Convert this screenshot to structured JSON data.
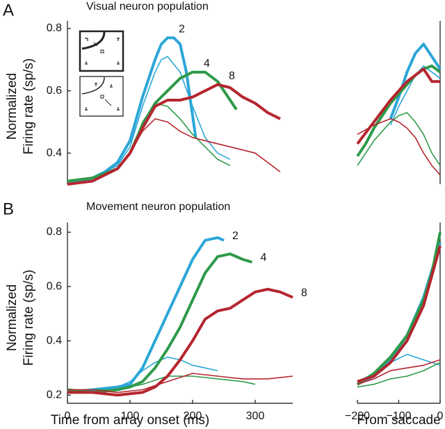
{
  "chart_data": [
    {
      "type": "line",
      "panel": "A",
      "title": "Visual neuron population",
      "ylabel": [
        "Normalized",
        "Firing rate (sp/s)"
      ],
      "xlim": [
        0,
        360
      ],
      "ylim": [
        0.3,
        0.8
      ],
      "yticks": [
        0.4,
        0.6,
        0.8
      ],
      "series": [
        {
          "name": "2",
          "color": "#2ba6d8",
          "thick": true,
          "x": [
            0,
            20,
            40,
            60,
            80,
            100,
            120,
            140,
            150,
            160,
            170,
            180,
            190,
            200,
            205
          ],
          "values": [
            0.31,
            0.31,
            0.32,
            0.34,
            0.37,
            0.44,
            0.58,
            0.7,
            0.75,
            0.77,
            0.77,
            0.75,
            0.66,
            0.52,
            0.45
          ]
        },
        {
          "color": "#2ba6d8",
          "thick": false,
          "x": [
            0,
            40,
            80,
            100,
            120,
            140,
            150,
            160,
            180,
            200,
            220,
            240,
            260
          ],
          "values": [
            0.31,
            0.32,
            0.36,
            0.42,
            0.55,
            0.66,
            0.7,
            0.71,
            0.66,
            0.55,
            0.45,
            0.4,
            0.38
          ]
        },
        {
          "name": "4",
          "color": "#2e9a4a",
          "thick": true,
          "x": [
            0,
            40,
            80,
            100,
            120,
            140,
            160,
            180,
            200,
            220,
            240,
            260,
            270
          ],
          "values": [
            0.31,
            0.32,
            0.35,
            0.4,
            0.49,
            0.56,
            0.6,
            0.64,
            0.66,
            0.66,
            0.63,
            0.57,
            0.54
          ]
        },
        {
          "color": "#2e9a4a",
          "thick": false,
          "x": [
            0,
            40,
            80,
            100,
            120,
            140,
            160,
            180,
            200,
            220,
            240,
            260
          ],
          "values": [
            0.31,
            0.32,
            0.35,
            0.4,
            0.5,
            0.56,
            0.55,
            0.51,
            0.46,
            0.42,
            0.38,
            0.36
          ]
        },
        {
          "name": "8",
          "color": "#b5252e",
          "thick": true,
          "x": [
            0,
            40,
            80,
            100,
            120,
            140,
            160,
            180,
            200,
            220,
            240,
            260,
            280,
            300,
            320,
            340
          ],
          "values": [
            0.3,
            0.31,
            0.35,
            0.4,
            0.48,
            0.55,
            0.57,
            0.57,
            0.58,
            0.6,
            0.62,
            0.61,
            0.58,
            0.56,
            0.53,
            0.51
          ]
        },
        {
          "color": "#b5252e",
          "thick": false,
          "x": [
            0,
            40,
            80,
            100,
            120,
            140,
            160,
            180,
            200,
            240,
            260,
            300,
            340
          ],
          "values": [
            0.3,
            0.31,
            0.35,
            0.4,
            0.47,
            0.51,
            0.5,
            0.47,
            0.45,
            0.43,
            0.42,
            0.4,
            0.34
          ]
        }
      ]
    },
    {
      "type": "line",
      "xlim": [
        -200,
        0
      ],
      "ylim": [
        0.3,
        0.8
      ],
      "series": [
        {
          "color": "#2ba6d8",
          "thick": true,
          "x": [
            -120,
            -100,
            -80,
            -60,
            -40,
            -20,
            0
          ],
          "values": [
            0.51,
            0.58,
            0.66,
            0.72,
            0.75,
            0.71,
            0.67
          ]
        },
        {
          "color": "#2ba6d8",
          "thick": false,
          "x": [
            -120,
            -100,
            -80,
            -60,
            -40,
            -20,
            0
          ],
          "values": [
            0.49,
            0.55,
            0.6,
            0.65,
            0.68,
            0.66,
            0.64
          ]
        },
        {
          "color": "#2e9a4a",
          "thick": true,
          "x": [
            -200,
            -180,
            -160,
            -140,
            -120,
            -100,
            -80,
            -60,
            -40,
            -20,
            0
          ],
          "values": [
            0.39,
            0.43,
            0.48,
            0.52,
            0.56,
            0.59,
            0.62,
            0.65,
            0.67,
            0.68,
            0.66
          ]
        },
        {
          "color": "#2e9a4a",
          "thick": false,
          "x": [
            -200,
            -160,
            -120,
            -100,
            -80,
            -60,
            -40,
            -20,
            0
          ],
          "values": [
            0.36,
            0.44,
            0.5,
            0.52,
            0.53,
            0.5,
            0.46,
            0.4,
            0.36
          ]
        },
        {
          "color": "#b5252e",
          "thick": true,
          "x": [
            -200,
            -160,
            -120,
            -100,
            -80,
            -60,
            -40,
            -20,
            0
          ],
          "values": [
            0.43,
            0.5,
            0.57,
            0.6,
            0.63,
            0.65,
            0.67,
            0.63,
            0.63
          ]
        },
        {
          "color": "#b5252e",
          "thick": false,
          "x": [
            -200,
            -160,
            -120,
            -100,
            -80,
            -60,
            -40,
            -20,
            0
          ],
          "values": [
            0.46,
            0.49,
            0.51,
            0.5,
            0.48,
            0.45,
            0.4,
            0.36,
            0.33
          ]
        }
      ]
    },
    {
      "type": "line",
      "panel": "B",
      "title": "Movement neuron population",
      "ylabel": [
        "Normalized",
        "Firing rate (sp/s)"
      ],
      "xlabel": "Time from array onset (ms)",
      "xlim": [
        0,
        360
      ],
      "ylim": [
        0.17,
        0.8
      ],
      "xticks": [
        0,
        100,
        200,
        300
      ],
      "yticks": [
        0.2,
        0.4,
        0.6,
        0.8
      ],
      "series": [
        {
          "name": "2",
          "color": "#2ba6d8",
          "thick": true,
          "x": [
            0,
            40,
            80,
            100,
            120,
            140,
            160,
            180,
            200,
            220,
            240,
            250
          ],
          "values": [
            0.21,
            0.22,
            0.23,
            0.24,
            0.3,
            0.4,
            0.5,
            0.6,
            0.7,
            0.77,
            0.78,
            0.77
          ]
        },
        {
          "color": "#2ba6d8",
          "thick": false,
          "x": [
            0,
            40,
            80,
            100,
            120,
            140,
            160,
            180,
            200,
            220,
            240
          ],
          "values": [
            0.21,
            0.22,
            0.23,
            0.25,
            0.29,
            0.32,
            0.34,
            0.33,
            0.31,
            0.3,
            0.29
          ]
        },
        {
          "name": "4",
          "color": "#2e9a4a",
          "thick": true,
          "x": [
            0,
            40,
            80,
            100,
            120,
            140,
            160,
            180,
            200,
            220,
            240,
            260,
            280,
            295
          ],
          "values": [
            0.22,
            0.21,
            0.22,
            0.23,
            0.25,
            0.3,
            0.37,
            0.45,
            0.55,
            0.65,
            0.71,
            0.72,
            0.7,
            0.69
          ]
        },
        {
          "color": "#2e9a4a",
          "thick": false,
          "x": [
            0,
            40,
            80,
            120,
            160,
            200,
            240,
            280,
            300
          ],
          "values": [
            0.22,
            0.22,
            0.22,
            0.24,
            0.27,
            0.27,
            0.26,
            0.25,
            0.24
          ]
        },
        {
          "name": "8",
          "color": "#b5252e",
          "thick": true,
          "x": [
            0,
            40,
            80,
            120,
            140,
            160,
            180,
            200,
            220,
            240,
            260,
            280,
            300,
            320,
            340,
            360
          ],
          "values": [
            0.21,
            0.21,
            0.2,
            0.21,
            0.23,
            0.27,
            0.33,
            0.4,
            0.48,
            0.51,
            0.52,
            0.55,
            0.58,
            0.59,
            0.58,
            0.56
          ]
        },
        {
          "color": "#b5252e",
          "thick": false,
          "x": [
            0,
            40,
            80,
            120,
            160,
            200,
            240,
            280,
            320,
            360
          ],
          "values": [
            0.22,
            0.22,
            0.21,
            0.22,
            0.25,
            0.28,
            0.27,
            0.26,
            0.26,
            0.27
          ]
        }
      ]
    },
    {
      "type": "line",
      "xlabel": "From saccade",
      "xlim": [
        -200,
        0
      ],
      "ylim": [
        0.17,
        0.8
      ],
      "xticks": [
        {
          "value": -200,
          "label": "−200"
        },
        {
          "value": -100,
          "label": "−100"
        },
        0
      ],
      "series": [
        {
          "color": "#2ba6d8",
          "thick": true,
          "x": [
            -200,
            -160,
            -120,
            -80,
            -40,
            -20,
            0
          ],
          "values": [
            0.24,
            0.27,
            0.33,
            0.42,
            0.56,
            0.66,
            0.76
          ]
        },
        {
          "color": "#2ba6d8",
          "thick": false,
          "x": [
            -200,
            -160,
            -120,
            -80,
            -40,
            0
          ],
          "values": [
            0.25,
            0.28,
            0.32,
            0.35,
            0.33,
            0.31
          ]
        },
        {
          "color": "#2e9a4a",
          "thick": true,
          "x": [
            -200,
            -160,
            -120,
            -80,
            -40,
            -20,
            0
          ],
          "values": [
            0.24,
            0.28,
            0.34,
            0.42,
            0.55,
            0.65,
            0.8
          ]
        },
        {
          "color": "#2e9a4a",
          "thick": false,
          "x": [
            -200,
            -160,
            -120,
            -80,
            -40,
            0
          ],
          "values": [
            0.23,
            0.24,
            0.26,
            0.27,
            0.29,
            0.32
          ]
        },
        {
          "color": "#b5252e",
          "thick": true,
          "x": [
            -200,
            -160,
            -120,
            -80,
            -40,
            -20,
            0
          ],
          "values": [
            0.25,
            0.27,
            0.32,
            0.4,
            0.53,
            0.64,
            0.75
          ]
        },
        {
          "color": "#b5252e",
          "thick": false,
          "x": [
            -200,
            -160,
            -120,
            -80,
            -40,
            0
          ],
          "values": [
            0.24,
            0.26,
            0.29,
            0.3,
            0.31,
            0.33
          ]
        }
      ]
    }
  ]
}
